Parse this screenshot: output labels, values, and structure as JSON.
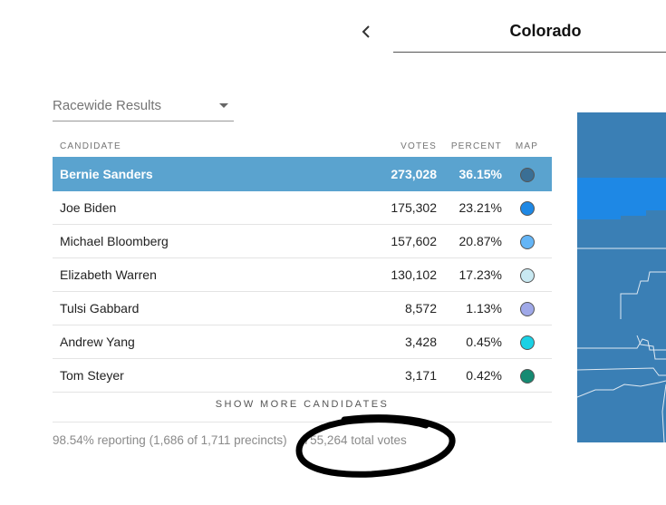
{
  "header": {
    "state_title": "Colorado",
    "back_icon": "chevron-left-icon"
  },
  "dropdown": {
    "selected": "Racewide Results",
    "icon": "caret-down-icon"
  },
  "table": {
    "columns": {
      "candidate": "CANDIDATE",
      "votes": "VOTES",
      "percent": "PERCENT",
      "map": "MAP"
    },
    "rows": [
      {
        "name": "Bernie Sanders",
        "votes": "273,028",
        "percent": "36.15%",
        "color": "#3a6f95",
        "leader": true
      },
      {
        "name": "Joe Biden",
        "votes": "175,302",
        "percent": "23.21%",
        "color": "#1e88e5",
        "leader": false
      },
      {
        "name": "Michael Bloomberg",
        "votes": "157,602",
        "percent": "20.87%",
        "color": "#64b5f6",
        "leader": false
      },
      {
        "name": "Elizabeth Warren",
        "votes": "130,102",
        "percent": "17.23%",
        "color": "#c9e9f2",
        "leader": false
      },
      {
        "name": "Tulsi Gabbard",
        "votes": "8,572",
        "percent": "1.13%",
        "color": "#9fa8e8",
        "leader": false
      },
      {
        "name": "Andrew Yang",
        "votes": "3,428",
        "percent": "0.45%",
        "color": "#1ad1e5",
        "leader": false
      },
      {
        "name": "Tom Steyer",
        "votes": "3,171",
        "percent": "0.42%",
        "color": "#158a72",
        "leader": false
      }
    ]
  },
  "show_more": "SHOW MORE CANDIDATES",
  "footer": {
    "reporting": "98.54% reporting (1,686 of 1,711 precincts)",
    "total_votes": "755,264 total votes"
  },
  "map": {
    "main_color": "#3a7fb5",
    "highlight_color": "#1e88e5",
    "border_color": "#dfe9f2"
  }
}
